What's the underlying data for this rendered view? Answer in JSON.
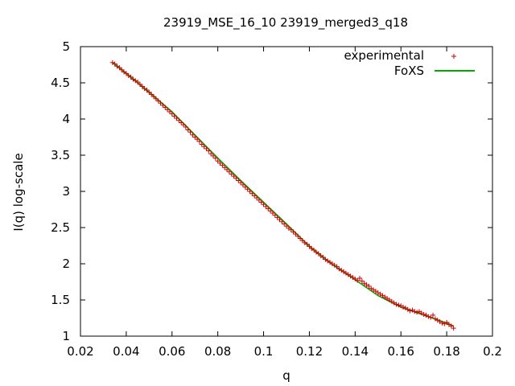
{
  "chart_data": {
    "type": "scatter",
    "title": "23919_MSE_16_10 23919_merged3_q18",
    "xlabel": "q",
    "ylabel": "I(q) log-scale",
    "xlim": [
      0.02,
      0.2
    ],
    "ylim": [
      1,
      5
    ],
    "x_ticks": [
      0.02,
      0.04,
      0.06,
      0.08,
      0.1,
      0.12,
      0.14,
      0.16,
      0.18,
      0.2
    ],
    "y_ticks": [
      1,
      1.5,
      2,
      2.5,
      3,
      3.5,
      4,
      4.5,
      5
    ],
    "x_tick_labels": [
      "0.02",
      "0.04",
      "0.06",
      "0.08",
      "0.1",
      "0.12",
      "0.14",
      "0.16",
      "0.18",
      "0.2"
    ],
    "y_tick_labels": [
      "1",
      "1.5",
      "2",
      "2.5",
      "3",
      "3.5",
      "4",
      "4.5",
      "5"
    ],
    "legend_position": "top-right",
    "grid": false,
    "series": [
      {
        "name": "experimental",
        "style": "markers",
        "marker": "plus",
        "color": "#cc0000",
        "x": [
          0.034,
          0.035,
          0.036,
          0.037,
          0.038,
          0.039,
          0.04,
          0.041,
          0.042,
          0.043,
          0.044,
          0.045,
          0.046,
          0.047,
          0.048,
          0.049,
          0.05,
          0.051,
          0.052,
          0.053,
          0.054,
          0.055,
          0.056,
          0.057,
          0.058,
          0.059,
          0.06,
          0.061,
          0.062,
          0.063,
          0.064,
          0.065,
          0.066,
          0.067,
          0.068,
          0.069,
          0.07,
          0.071,
          0.072,
          0.073,
          0.074,
          0.075,
          0.076,
          0.077,
          0.078,
          0.079,
          0.08,
          0.081,
          0.082,
          0.083,
          0.084,
          0.085,
          0.086,
          0.087,
          0.088,
          0.089,
          0.09,
          0.091,
          0.092,
          0.093,
          0.094,
          0.095,
          0.096,
          0.097,
          0.098,
          0.099,
          0.1,
          0.101,
          0.102,
          0.103,
          0.104,
          0.105,
          0.106,
          0.107,
          0.108,
          0.109,
          0.11,
          0.111,
          0.112,
          0.113,
          0.114,
          0.115,
          0.116,
          0.117,
          0.118,
          0.119,
          0.12,
          0.121,
          0.122,
          0.123,
          0.124,
          0.125,
          0.126,
          0.127,
          0.128,
          0.129,
          0.13,
          0.131,
          0.132,
          0.133,
          0.134,
          0.135,
          0.136,
          0.137,
          0.138,
          0.139,
          0.14,
          0.141,
          0.142,
          0.143,
          0.144,
          0.145,
          0.146,
          0.147,
          0.148,
          0.149,
          0.15,
          0.151,
          0.152,
          0.153,
          0.154,
          0.155,
          0.156,
          0.157,
          0.158,
          0.159,
          0.16,
          0.161,
          0.162,
          0.163,
          0.164,
          0.165,
          0.166,
          0.167,
          0.168,
          0.169,
          0.17,
          0.171,
          0.172,
          0.173,
          0.174,
          0.175,
          0.176,
          0.177,
          0.178,
          0.179,
          0.18,
          0.181,
          0.182,
          0.183
        ],
        "y": [
          4.78,
          4.76,
          4.73,
          4.71,
          4.68,
          4.65,
          4.63,
          4.6,
          4.58,
          4.55,
          4.53,
          4.51,
          4.48,
          4.45,
          4.42,
          4.4,
          4.37,
          4.34,
          4.31,
          4.28,
          4.25,
          4.22,
          4.19,
          4.16,
          4.13,
          4.1,
          4.07,
          4.04,
          4.01,
          3.98,
          3.95,
          3.92,
          3.89,
          3.85,
          3.82,
          3.78,
          3.75,
          3.72,
          3.69,
          3.65,
          3.62,
          3.59,
          3.56,
          3.52,
          3.49,
          3.46,
          3.42,
          3.39,
          3.36,
          3.33,
          3.3,
          3.27,
          3.24,
          3.21,
          3.18,
          3.15,
          3.12,
          3.09,
          3.06,
          3.03,
          3.0,
          2.97,
          2.94,
          2.91,
          2.88,
          2.85,
          2.82,
          2.79,
          2.76,
          2.73,
          2.7,
          2.67,
          2.64,
          2.61,
          2.58,
          2.55,
          2.52,
          2.49,
          2.47,
          2.44,
          2.41,
          2.38,
          2.35,
          2.32,
          2.29,
          2.27,
          2.24,
          2.21,
          2.19,
          2.16,
          2.14,
          2.11,
          2.09,
          2.06,
          2.04,
          2.02,
          2.0,
          1.98,
          1.96,
          1.93,
          1.91,
          1.89,
          1.87,
          1.85,
          1.83,
          1.81,
          1.79,
          1.77,
          1.8,
          1.76,
          1.73,
          1.71,
          1.69,
          1.66,
          1.64,
          1.62,
          1.6,
          1.58,
          1.56,
          1.54,
          1.52,
          1.5,
          1.48,
          1.46,
          1.44,
          1.43,
          1.42,
          1.4,
          1.39,
          1.37,
          1.35,
          1.36,
          1.34,
          1.33,
          1.34,
          1.32,
          1.3,
          1.29,
          1.27,
          1.26,
          1.29,
          1.24,
          1.22,
          1.2,
          1.18,
          1.17,
          1.19,
          1.16,
          1.14,
          1.11
        ]
      },
      {
        "name": "FoXS",
        "style": "line",
        "color": "#00aa00",
        "x": [
          0.034,
          0.04,
          0.05,
          0.06,
          0.07,
          0.08,
          0.09,
          0.1,
          0.11,
          0.12,
          0.13,
          0.14,
          0.15,
          0.16,
          0.17,
          0.18,
          0.183
        ],
        "y": [
          4.78,
          4.63,
          4.37,
          4.1,
          3.78,
          3.46,
          3.15,
          2.85,
          2.55,
          2.24,
          1.99,
          1.78,
          1.56,
          1.4,
          1.29,
          1.18,
          1.14
        ]
      }
    ]
  }
}
